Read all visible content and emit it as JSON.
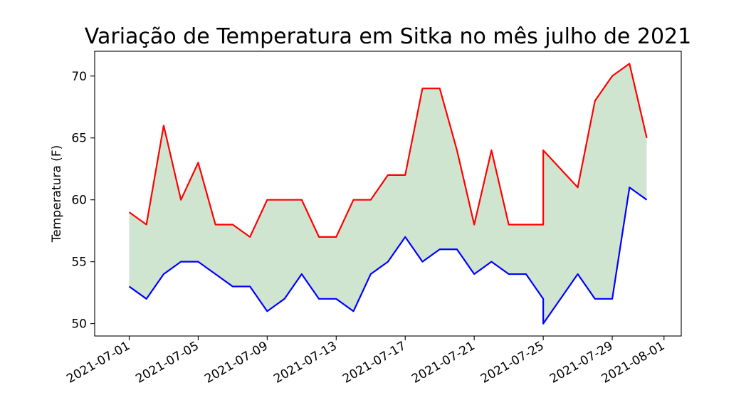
{
  "chart_data": {
    "type": "line",
    "title": "Variação de Temperatura em Sitka no mês julho de 2021",
    "xlabel": "",
    "ylabel": "Temperatura (F)",
    "ylim": [
      49,
      72
    ],
    "xlim": [
      "2021-06-29",
      "2021-08-02"
    ],
    "yticks": [
      50,
      55,
      60,
      65,
      70
    ],
    "xticks": [
      "2021-07-01",
      "2021-07-05",
      "2021-07-09",
      "2021-07-13",
      "2021-07-17",
      "2021-07-21",
      "2021-07-25",
      "2021-07-29",
      "2021-08-01"
    ],
    "grid": false,
    "fill_between": {
      "color": "#cfe5cf",
      "series": [
        "high",
        "low"
      ]
    },
    "dates": [
      "2021-07-01",
      "2021-07-02",
      "2021-07-03",
      "2021-07-04",
      "2021-07-05",
      "2021-07-06",
      "2021-07-07",
      "2021-07-08",
      "2021-07-09",
      "2021-07-10",
      "2021-07-11",
      "2021-07-12",
      "2021-07-13",
      "2021-07-14",
      "2021-07-15",
      "2021-07-16",
      "2021-07-17",
      "2021-07-18",
      "2021-07-19",
      "2021-07-20",
      "2021-07-21",
      "2021-07-22",
      "2021-07-23",
      "2021-07-24",
      "2021-07-25",
      "2021-07-25",
      "2021-07-27",
      "2021-07-28",
      "2021-07-29",
      "2021-07-30",
      "2021-07-31"
    ],
    "series": [
      {
        "key": "high",
        "color": "#ff0000",
        "values": [
          59,
          58,
          66,
          60,
          63,
          58,
          58,
          57,
          60,
          60,
          60,
          57,
          57,
          60,
          60,
          62,
          62,
          69,
          69,
          64,
          58,
          64,
          58,
          58,
          58,
          64,
          61,
          68,
          70,
          71,
          65
        ]
      },
      {
        "key": "low",
        "color": "#0000ff",
        "values": [
          53,
          52,
          54,
          55,
          55,
          54,
          53,
          53,
          51,
          52,
          54,
          52,
          52,
          51,
          54,
          55,
          57,
          55,
          56,
          56,
          54,
          55,
          54,
          54,
          52,
          50,
          54,
          52,
          52,
          61,
          60
        ]
      }
    ]
  }
}
